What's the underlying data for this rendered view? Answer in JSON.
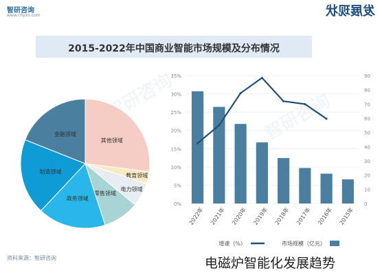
{
  "header": {
    "logo_text": "智研咨询",
    "url_text": "www.chyxx.com",
    "section_title": "发展现状"
  },
  "banner": {
    "title": "2015-2022年中国商业智能市场规模及分布情况"
  },
  "watermark": "智研咨询",
  "source_text": "资料来源：智研咨询",
  "caption": "电磁炉智能化发展趋势",
  "chart_data": [
    {
      "type": "pie",
      "labels": [
        "其他领域",
        "教育领域",
        "电力领域",
        "零售领域",
        "政务领域",
        "制造领域",
        "金融领域"
      ],
      "values": [
        27,
        3,
        6,
        9,
        17,
        19,
        19
      ],
      "colors": [
        "#f6cdc4",
        "#fbe9c0",
        "#e8edf2",
        "#a8d4d6",
        "#29b6e8",
        "#0f9bd6",
        "#4a7fa0"
      ]
    },
    {
      "type": "bar+line",
      "categories": [
        "2022年",
        "2021年",
        "2020年",
        "2019年",
        "2018年",
        "2017年",
        "2016年",
        "2015年"
      ],
      "bar_series": {
        "name": "市场规模（亿元）",
        "values": [
          79,
          68,
          56,
          43,
          32,
          25,
          21,
          17
        ],
        "color": "#4a7fa0"
      },
      "line_series": {
        "name": "增速（%）",
        "values": [
          16.5,
          21.4,
          30.2,
          34.4,
          28.0,
          27.2,
          23.2
        ],
        "color": "#1f4f7f"
      },
      "left_axis": {
        "ticks": [
          "35%",
          "30%",
          "25%",
          "20%",
          "15%",
          "10%",
          "5%",
          "0%"
        ],
        "range": [
          0,
          35
        ]
      },
      "right_axis": {
        "ticks": [
          "90",
          "80",
          "70",
          "60",
          "50",
          "40",
          "30",
          "20",
          "10",
          "0"
        ],
        "range": [
          0,
          90
        ]
      },
      "legend_position": "bottom"
    }
  ]
}
